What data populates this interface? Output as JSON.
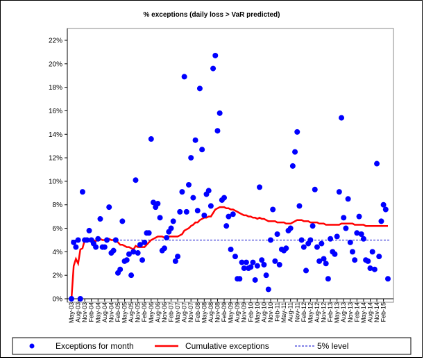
{
  "chart_data": {
    "type": "combo",
    "title": "% exceptions (daily loss > VaR predicted)",
    "categories": [
      "May-03",
      null,
      null,
      "Aug-03",
      null,
      null,
      "Nov-03",
      null,
      null,
      "Feb-04",
      null,
      null,
      "May-04",
      null,
      null,
      "Aug-04",
      null,
      null,
      "Nov-04",
      null,
      null,
      "Feb-05",
      null,
      null,
      "May-05",
      null,
      null,
      "Aug-05",
      null,
      null,
      "Nov-05",
      null,
      null,
      "Feb-06",
      null,
      null,
      "May-06",
      null,
      null,
      "Aug-06",
      null,
      null,
      "Nov-06",
      null,
      null,
      "Feb-07",
      null,
      null,
      "May-07",
      null,
      null,
      "Aug-07",
      null,
      null,
      "Nov-07",
      null,
      null,
      "Feb-08",
      null,
      null,
      "May-08",
      null,
      null,
      "Aug-08",
      null,
      null,
      "Nov-08",
      null,
      null,
      "Feb-09",
      null,
      null,
      "May-09",
      null,
      null,
      "Aug-09",
      null,
      null,
      "Nov-09",
      null,
      null,
      "Feb-10",
      null,
      null,
      "May-10",
      null,
      null,
      "Aug-10",
      null,
      null,
      "Nov-10",
      null,
      null,
      "Feb-11",
      null,
      null,
      "May-11",
      null,
      null,
      "Aug-11",
      null,
      null,
      "Nov-11",
      null,
      null,
      "Feb-12",
      null,
      null,
      "May-12",
      null,
      null,
      "Aug-12",
      null,
      null,
      "Nov-12",
      null,
      null,
      "Feb-13",
      null,
      null,
      "May-13",
      null,
      null,
      "Aug-13",
      null,
      null,
      "Nov-13",
      null,
      null,
      "Feb-14",
      null,
      null,
      "May-14",
      null,
      null,
      "Aug-14",
      null,
      null,
      "Nov-14",
      null,
      null,
      "Feb-15",
      null,
      null
    ],
    "series": [
      {
        "name": "Exceptions for month",
        "kind": "scatter",
        "color": "#0000ff",
        "values": [
          0,
          4.8,
          4.4,
          5,
          0,
          9.1,
          5,
          5,
          5.8,
          5,
          4.7,
          4.4,
          5.1,
          6.8,
          4.4,
          4.4,
          5,
          7.8,
          3.9,
          4.1,
          5,
          2.2,
          2.5,
          6.6,
          3.2,
          3.3,
          3.8,
          2,
          4,
          10.1,
          3.9,
          4.6,
          3.3,
          4.8,
          5.6,
          5.6,
          13.6,
          8.2,
          7.8,
          8.1,
          6.9,
          4.1,
          4.3,
          5.2,
          5.7,
          6,
          6.6,
          3.2,
          3.6,
          7.4,
          9.1,
          18.9,
          7.4,
          9.7,
          12,
          8.6,
          13.5,
          7.5,
          17.9,
          12.7,
          7.1,
          8.9,
          9.2,
          7.9,
          19.6,
          20.7,
          14.3,
          15.8,
          8.4,
          8.6,
          6.2,
          7,
          4.2,
          7.2,
          3.6,
          1.7,
          1.7,
          3.1,
          2.6,
          3.1,
          2.6,
          2.7,
          3.1,
          1.6,
          2.8,
          9.5,
          3.3,
          2.9,
          2,
          0.8,
          5,
          7.6,
          3.2,
          5.5,
          2.9,
          4.2,
          4.1,
          4.3,
          5.8,
          6,
          11.3,
          12.5,
          14.2,
          7.9,
          5,
          4.4,
          2.4,
          4.7,
          5,
          6.2,
          9.3,
          4.4,
          3.2,
          4.7,
          3.4,
          3,
          1.7,
          5.1,
          4,
          3.8,
          5.3,
          9.1,
          15.4,
          6.9,
          6,
          8.5,
          4.8,
          4,
          3.3,
          5.6,
          7,
          5.5,
          5.1,
          3.3,
          3.2,
          2.6,
          4,
          2.5,
          11.5,
          3.6,
          6.6,
          8,
          7.6,
          1.7
        ]
      },
      {
        "name": "Cumulative exceptions",
        "kind": "line",
        "color": "#ff0000",
        "values": [
          0,
          2.8,
          3.4,
          3.0,
          4.2,
          4.3,
          5.0,
          5.0,
          5.0,
          5.0,
          5.0,
          4.9,
          5.2,
          5.1,
          5.0,
          5.0,
          5.1,
          5.1,
          5.0,
          5.0,
          5.0,
          4.8,
          4.6,
          4.6,
          4.5,
          4.4,
          4.4,
          4.3,
          4.2,
          4.5,
          4.4,
          4.4,
          4.4,
          4.4,
          4.6,
          4.8,
          5.0,
          5.1,
          5.2,
          5.3,
          5.3,
          5.3,
          5.2,
          5.2,
          5.3,
          5.3,
          5.3,
          5.3,
          5.3,
          5.4,
          5.5,
          5.8,
          5.9,
          6.0,
          6.2,
          6.3,
          6.5,
          6.5,
          6.7,
          6.8,
          6.9,
          6.9,
          7.0,
          7.0,
          7.3,
          7.6,
          7.7,
          7.8,
          7.8,
          7.8,
          7.7,
          7.7,
          7.6,
          7.6,
          7.5,
          7.4,
          7.3,
          7.2,
          7.1,
          7.1,
          7.0,
          7.0,
          6.9,
          6.9,
          6.8,
          6.9,
          6.8,
          6.8,
          6.7,
          6.6,
          6.6,
          6.6,
          6.6,
          6.5,
          6.5,
          6.5,
          6.5,
          6.4,
          6.4,
          6.4,
          6.5,
          6.6,
          6.7,
          6.7,
          6.7,
          6.6,
          6.6,
          6.6,
          6.5,
          6.5,
          6.5,
          6.5,
          6.4,
          6.4,
          6.4,
          6.3,
          6.3,
          6.3,
          6.3,
          6.3,
          6.3,
          6.3,
          6.4,
          6.4,
          6.4,
          6.4,
          6.4,
          6.4,
          6.3,
          6.3,
          6.3,
          6.3,
          6.3,
          6.2,
          6.2,
          6.2,
          6.2,
          6.2,
          6.2,
          6.2,
          6.2,
          6.2,
          6.2,
          6.2
        ]
      }
    ],
    "reference_line": {
      "name": "5% level",
      "value": 5,
      "color": "#0000cc"
    },
    "ylim": [
      0,
      22
    ],
    "yticks": [
      {
        "value": 0,
        "label": "0%"
      },
      {
        "value": 2,
        "label": "2%"
      },
      {
        "value": 4,
        "label": "4%"
      },
      {
        "value": 6,
        "label": "6%"
      },
      {
        "value": 8,
        "label": "8%"
      },
      {
        "value": 10,
        "label": "10%"
      },
      {
        "value": 12,
        "label": "12%"
      },
      {
        "value": 14,
        "label": "14%"
      },
      {
        "value": 16,
        "label": "16%"
      },
      {
        "value": 18,
        "label": "18%"
      },
      {
        "value": 20,
        "label": "20%"
      },
      {
        "value": 22,
        "label": "22%"
      }
    ],
    "grid": false
  }
}
